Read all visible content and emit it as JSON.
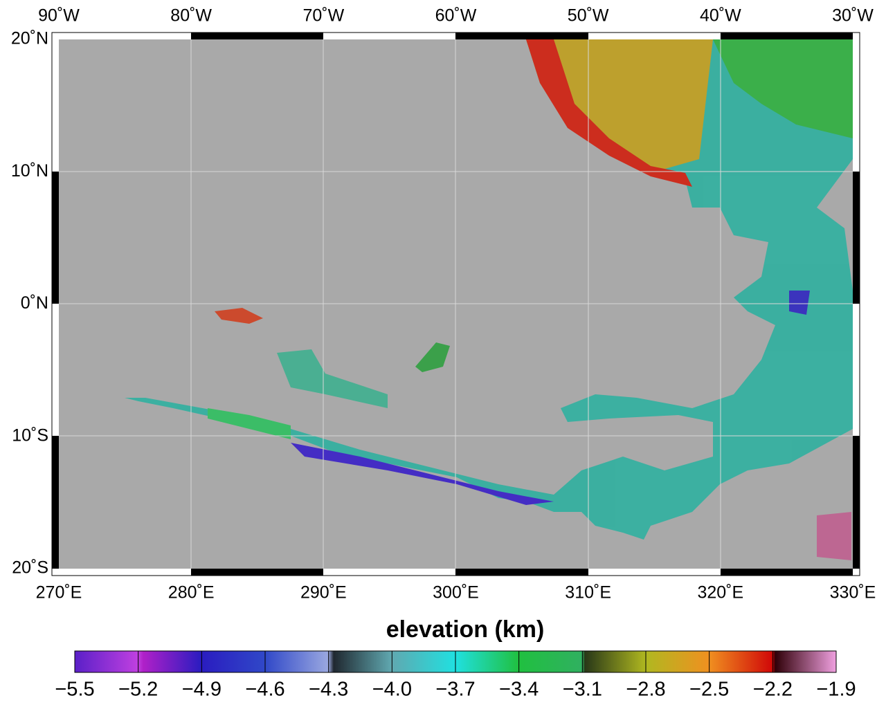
{
  "map": {
    "top_labels": [
      "90˚W",
      "80˚W",
      "70˚W",
      "60˚W",
      "50˚W",
      "40˚W",
      "30˚W"
    ],
    "bottom_labels": [
      "270˚E",
      "280˚E",
      "290˚E",
      "300˚E",
      "310˚E",
      "320˚E",
      "330˚E"
    ],
    "left_labels": [
      "20˚N",
      "10˚N",
      "0˚N",
      "10˚S",
      "20˚S"
    ],
    "colorbar": {
      "title": "elevation (km)",
      "ticks": [
        {
          "value": -5.5,
          "label": "−5.5"
        },
        {
          "value": -5.2,
          "label": "−5.2"
        },
        {
          "value": -4.9,
          "label": "−4.9"
        },
        {
          "value": -4.6,
          "label": "−4.6"
        },
        {
          "value": -4.3,
          "label": "−4.3"
        },
        {
          "value": -4.0,
          "label": "−4.0"
        },
        {
          "value": -3.7,
          "label": "−3.7"
        },
        {
          "value": -3.4,
          "label": "−3.4"
        },
        {
          "value": -3.1,
          "label": "−3.1"
        },
        {
          "value": -2.8,
          "label": "−2.8"
        },
        {
          "value": -2.5,
          "label": "−2.5"
        },
        {
          "value": -2.2,
          "label": "−2.2"
        },
        {
          "value": -1.9,
          "label": "−1.9"
        }
      ]
    }
  }
}
